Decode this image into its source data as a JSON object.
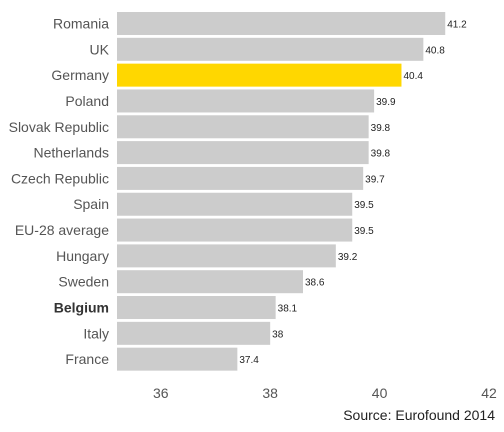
{
  "chart_data": {
    "type": "bar",
    "orientation": "horizontal",
    "categories": [
      "Romania",
      "UK",
      "Germany",
      "Poland",
      "Slovak Republic",
      "Netherlands",
      "Czech Republic",
      "Spain",
      "EU-28 average",
      "Hungary",
      "Sweden",
      "Belgium",
      "Italy",
      "France"
    ],
    "values": [
      41.2,
      40.8,
      40.4,
      39.9,
      39.8,
      39.8,
      39.7,
      39.5,
      39.5,
      39.2,
      38.6,
      38.1,
      38,
      37.4
    ],
    "value_labels": [
      "41.2",
      "40.8",
      "40.4",
      "39.9",
      "39.8",
      "39.8",
      "39.7",
      "39.5",
      "39.5",
      "39.2",
      "38.6",
      "38.1",
      "38",
      "37.4"
    ],
    "highlight": "Germany",
    "bold_category": "Belgium",
    "xlim": [
      35.2,
      42
    ],
    "ticks": [
      36,
      38,
      40,
      42
    ],
    "tick_labels": [
      "36",
      "38",
      "40",
      "42"
    ],
    "grid": false,
    "title": "",
    "xlabel": "",
    "ylabel": "",
    "colors": {
      "bar": "#cccccc",
      "highlight": "#ffd700"
    }
  },
  "source": "Source: Eurofound 2014"
}
